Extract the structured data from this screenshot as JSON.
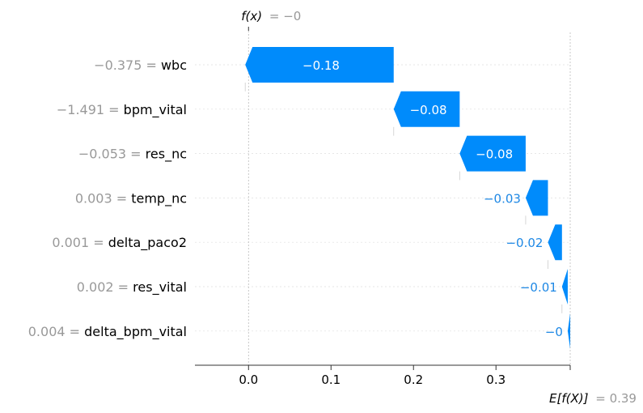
{
  "chart_data": {
    "type": "waterfall",
    "fx_label_prefix": "f(x)",
    "fx_value_text": "= −0",
    "fx": 0.0,
    "base_label_prefix": "E[f(X)]",
    "base_value_text": "= 0.39",
    "base_value": 0.39,
    "xlim": [
      -0.065,
      0.39
    ],
    "xticks": [
      {
        "value": 0.0,
        "label": "0.0"
      },
      {
        "value": 0.1,
        "label": "0.1"
      },
      {
        "value": 0.2,
        "label": "0.2"
      },
      {
        "value": 0.3,
        "label": "0.3"
      }
    ],
    "features": [
      {
        "value_text": "−0.375 =",
        "name": "wbc",
        "contribution": -0.18,
        "label": "−0.18"
      },
      {
        "value_text": "−1.491 =",
        "name": "bpm_vital",
        "contribution": -0.08,
        "label": "−0.08"
      },
      {
        "value_text": "−0.053 =",
        "name": "res_nc",
        "contribution": -0.08,
        "label": "−0.08"
      },
      {
        "value_text": "0.003 =",
        "name": "temp_nc",
        "contribution": -0.027,
        "label": "−0.03"
      },
      {
        "value_text": "0.001 =",
        "name": "delta_paco2",
        "contribution": -0.017,
        "label": "−0.02"
      },
      {
        "value_text": "0.002 =",
        "name": "res_vital",
        "contribution": -0.007,
        "label": "−0.01"
      },
      {
        "value_text": "0.004 =",
        "name": "delta_bpm_vital",
        "contribution": -0.003,
        "label": "−0"
      }
    ],
    "colors": {
      "negative": "#008bfb",
      "negative_text_outside": "#1e88e5",
      "label_gray": "#999999"
    }
  }
}
